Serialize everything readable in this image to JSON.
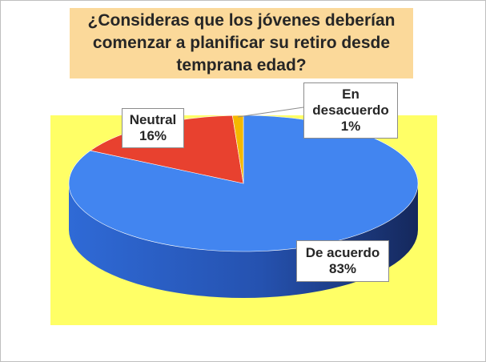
{
  "chart_data": {
    "type": "pie",
    "title": "¿Consideras que los jóvenes deberían comenzar a planificar su retiro desde temprana edad?",
    "slices": [
      {
        "label": "De acuerdo",
        "value": 83,
        "percent_label": "83%",
        "color": "#4285f0"
      },
      {
        "label": "Neutral",
        "value": 16,
        "percent_label": "16%",
        "color": "#e8412f"
      },
      {
        "label": "En desacuerdo",
        "value": 1,
        "percent_label": "1%",
        "color": "#f5b800"
      }
    ],
    "colors": {
      "title_background": "#fbd99a",
      "plot_background": "#ffff66"
    },
    "style": "3d-pie"
  }
}
